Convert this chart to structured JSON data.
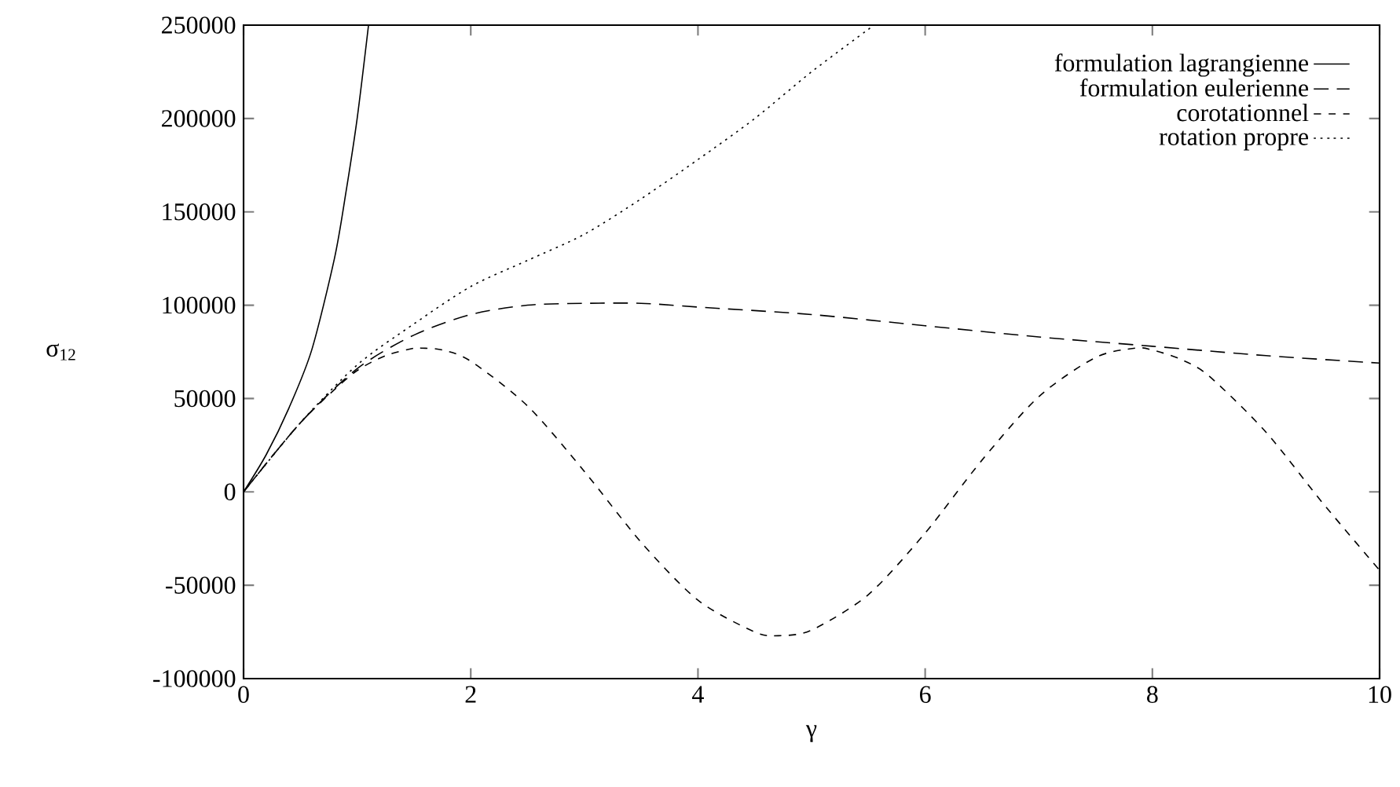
{
  "chart_data": {
    "type": "line",
    "xlabel": "γ",
    "ylabel": "σ$_{12}$",
    "xlim": [
      0,
      10
    ],
    "ylim": [
      -100000,
      250000
    ],
    "xticks": [
      0,
      2,
      4,
      6,
      8,
      10
    ],
    "yticks": [
      -100000,
      -50000,
      0,
      50000,
      100000,
      150000,
      200000,
      250000
    ],
    "grid": false,
    "legend": "top right",
    "marker": "none",
    "series": [
      {
        "name": "formulation lagrangienne",
        "color": "#000000",
        "line_style": "solid",
        "x": [
          0,
          0.2,
          0.4,
          0.6,
          0.8,
          0.9,
          1.0,
          1.1
        ],
        "values": [
          0,
          20000,
          45000,
          76000,
          125000,
          160000,
          200000,
          250000
        ]
      },
      {
        "name": "formulation eulerienne",
        "color": "#000000",
        "line_style": "dashed",
        "x": [
          0,
          0.5,
          1,
          1.5,
          2,
          2.5,
          3,
          3.5,
          4,
          5,
          6,
          7,
          8,
          9,
          10
        ],
        "values": [
          0,
          37000,
          66000,
          84000,
          95000,
          100000,
          101000,
          101000,
          99000,
          95000,
          89000,
          83000,
          78000,
          73000,
          69000
        ]
      },
      {
        "name": "corotationnel",
        "color": "#000000",
        "line_style": "dashed",
        "x": [
          0,
          0.25,
          0.5,
          0.75,
          1,
          1.25,
          1.5,
          1.57,
          1.75,
          2,
          2.5,
          3,
          3.5,
          4,
          4.5,
          4.71,
          5,
          5.5,
          6,
          6.5,
          7,
          7.5,
          7.85,
          8,
          8.25,
          8.5,
          9,
          9.5,
          10
        ],
        "values": [
          0,
          19000,
          37000,
          52000,
          65000,
          73000,
          77000,
          77000,
          76000,
          70000,
          46000,
          11000,
          -27000,
          -58000,
          -75000,
          -77000,
          -74000,
          -55000,
          -22000,
          17000,
          51000,
          72000,
          77000,
          76000,
          71000,
          62000,
          32000,
          -6000,
          -42000
        ]
      },
      {
        "name": "rotation propre",
        "color": "#000000",
        "line_style": "dotted",
        "x": [
          0,
          0.5,
          1,
          1.5,
          2,
          2.5,
          3,
          3.5,
          4,
          4.5,
          5,
          5.55
        ],
        "values": [
          0,
          37000,
          68000,
          90000,
          110000,
          124000,
          138000,
          157000,
          178000,
          200000,
          225000,
          250000
        ]
      }
    ]
  }
}
